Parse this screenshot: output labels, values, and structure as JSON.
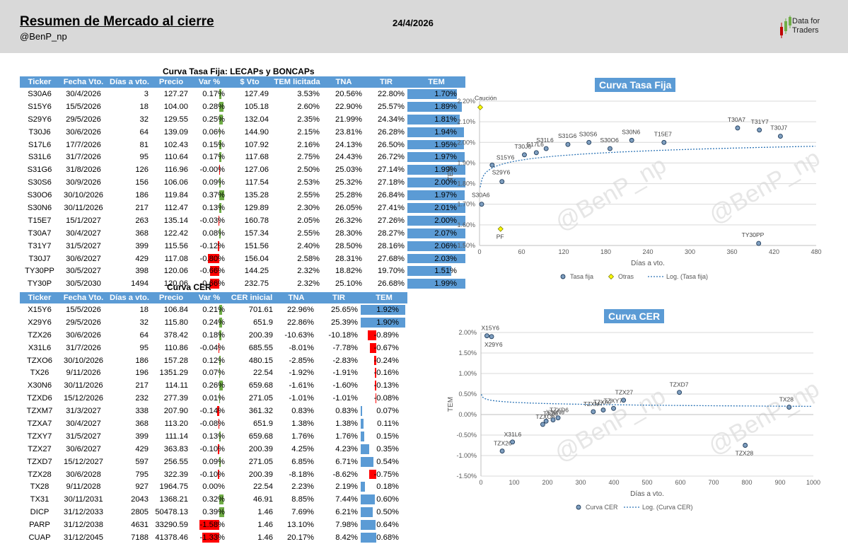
{
  "header": {
    "title": "Resumen de Mercado al cierre",
    "handle": "@BenP_np",
    "date": "24/4/2026",
    "logo_line1": "Data for",
    "logo_line2": "Traders"
  },
  "colors": {
    "header_bg": "#d9d9d9",
    "accent": "#5b9bd5",
    "positive": "#70ad47",
    "negative": "#ff0000"
  },
  "fija_table": {
    "title": "Curva Tasa Fija: LECAPs y BONCAPs",
    "columns": [
      "Ticker",
      "Fecha Vto.",
      "Días a vto.",
      "Precio",
      "Var %",
      "$ Vto",
      "TEM licitada",
      "TNA",
      "TIR",
      "TEM"
    ],
    "rows": [
      [
        "S30A6",
        "30/4/2026",
        "3",
        "127.27",
        "0.17%",
        "127.49",
        "3.53%",
        "20.56%",
        "22.80%",
        "1.70%"
      ],
      [
        "S15Y6",
        "15/5/2026",
        "18",
        "104.00",
        "0.28%",
        "105.18",
        "2.60%",
        "22.90%",
        "25.57%",
        "1.89%"
      ],
      [
        "S29Y6",
        "29/5/2026",
        "32",
        "129.55",
        "0.25%",
        "132.04",
        "2.35%",
        "21.99%",
        "24.34%",
        "1.81%"
      ],
      [
        "T30J6",
        "30/6/2026",
        "64",
        "139.09",
        "0.06%",
        "144.90",
        "2.15%",
        "23.81%",
        "26.28%",
        "1.94%"
      ],
      [
        "S17L6",
        "17/7/2026",
        "81",
        "102.43",
        "0.15%",
        "107.92",
        "2.16%",
        "24.13%",
        "26.50%",
        "1.95%"
      ],
      [
        "S31L6",
        "31/7/2026",
        "95",
        "110.64",
        "0.17%",
        "117.68",
        "2.75%",
        "24.43%",
        "26.72%",
        "1.97%"
      ],
      [
        "S31G6",
        "31/8/2026",
        "126",
        "116.96",
        "-0.00%",
        "127.06",
        "2.50%",
        "25.03%",
        "27.14%",
        "1.99%"
      ],
      [
        "S30S6",
        "30/9/2026",
        "156",
        "106.06",
        "0.09%",
        "117.54",
        "2.53%",
        "25.32%",
        "27.18%",
        "2.00%"
      ],
      [
        "S30O6",
        "30/10/2026",
        "186",
        "119.84",
        "0.37%",
        "135.28",
        "2.55%",
        "25.28%",
        "26.84%",
        "1.97%"
      ],
      [
        "S30N6",
        "30/11/2026",
        "217",
        "112.47",
        "0.13%",
        "129.89",
        "2.30%",
        "26.05%",
        "27.41%",
        "2.01%"
      ],
      [
        "T15E7",
        "15/1/2027",
        "263",
        "135.14",
        "-0.03%",
        "160.78",
        "2.05%",
        "26.32%",
        "27.26%",
        "2.00%"
      ],
      [
        "T30A7",
        "30/4/2027",
        "368",
        "122.42",
        "0.08%",
        "157.34",
        "2.55%",
        "28.30%",
        "28.27%",
        "2.07%"
      ],
      [
        "T31Y7",
        "31/5/2027",
        "399",
        "115.56",
        "-0.12%",
        "151.56",
        "2.40%",
        "28.50%",
        "28.16%",
        "2.06%"
      ],
      [
        "T30J7",
        "30/6/2027",
        "429",
        "117.08",
        "-0.80%",
        "156.04",
        "2.58%",
        "28.31%",
        "27.68%",
        "2.03%"
      ],
      [
        "TY30PP",
        "30/5/2027",
        "398",
        "120.06",
        "-0.66%",
        "144.25",
        "2.32%",
        "18.82%",
        "19.70%",
        "1.51%"
      ],
      [
        "TY30P",
        "30/5/2030",
        "1494",
        "120.06",
        "-0.66%",
        "232.75",
        "2.32%",
        "25.10%",
        "26.68%",
        "1.99%"
      ]
    ],
    "var_values": [
      0.17,
      0.28,
      0.25,
      0.06,
      0.15,
      0.17,
      -0.005,
      0.09,
      0.37,
      0.13,
      -0.03,
      0.08,
      -0.12,
      -0.8,
      -0.66,
      -0.66
    ],
    "tem_values": [
      1.7,
      1.89,
      1.81,
      1.94,
      1.95,
      1.97,
      1.99,
      2.0,
      1.97,
      2.01,
      2.0,
      2.07,
      2.06,
      2.03,
      1.51,
      1.99
    ]
  },
  "cer_table": {
    "title": "Curva CER",
    "columns": [
      "Ticker",
      "Fecha Vto.",
      "Días a vto.",
      "Precio",
      "Var %",
      "CER inicial",
      "TNA",
      "TIR",
      "TEM"
    ],
    "rows": [
      [
        "X15Y6",
        "15/5/2026",
        "18",
        "106.84",
        "0.21%",
        "701.61",
        "22.96%",
        "25.65%",
        "1.92%"
      ],
      [
        "X29Y6",
        "29/5/2026",
        "32",
        "115.80",
        "0.24%",
        "651.9",
        "22.86%",
        "25.39%",
        "1.90%"
      ],
      [
        "TZX26",
        "30/6/2026",
        "64",
        "378.42",
        "0.18%",
        "200.39",
        "-10.63%",
        "-10.18%",
        "-0.89%"
      ],
      [
        "X31L6",
        "31/7/2026",
        "95",
        "110.86",
        "-0.04%",
        "685.55",
        "-8.01%",
        "-7.78%",
        "-0.67%"
      ],
      [
        "TZXO6",
        "30/10/2026",
        "186",
        "157.28",
        "0.12%",
        "480.15",
        "-2.85%",
        "-2.83%",
        "-0.24%"
      ],
      [
        "TX26",
        "9/11/2026",
        "196",
        "1351.29",
        "0.07%",
        "22.54",
        "-1.92%",
        "-1.91%",
        "-0.16%"
      ],
      [
        "X30N6",
        "30/11/2026",
        "217",
        "114.11",
        "0.26%",
        "659.68",
        "-1.61%",
        "-1.60%",
        "-0.13%"
      ],
      [
        "TZXD6",
        "15/12/2026",
        "232",
        "277.39",
        "0.01%",
        "271.05",
        "-1.01%",
        "-1.01%",
        "-0.08%"
      ],
      [
        "TZXM7",
        "31/3/2027",
        "338",
        "207.90",
        "-0.14%",
        "361.32",
        "0.83%",
        "0.83%",
        "0.07%"
      ],
      [
        "TZXA7",
        "30/4/2027",
        "368",
        "113.20",
        "-0.08%",
        "651.9",
        "1.38%",
        "1.38%",
        "0.11%"
      ],
      [
        "TZXY7",
        "31/5/2027",
        "399",
        "111.14",
        "0.13%",
        "659.68",
        "1.76%",
        "1.76%",
        "0.15%"
      ],
      [
        "TZX27",
        "30/6/2027",
        "429",
        "363.83",
        "-0.10%",
        "200.39",
        "4.25%",
        "4.23%",
        "0.35%"
      ],
      [
        "TZXD7",
        "15/12/2027",
        "597",
        "256.55",
        "0.09%",
        "271.05",
        "6.85%",
        "6.71%",
        "0.54%"
      ],
      [
        "TZX28",
        "30/6/2028",
        "795",
        "322.39",
        "-0.10%",
        "200.39",
        "-8.18%",
        "-8.62%",
        "-0.75%"
      ],
      [
        "TX28",
        "9/11/2028",
        "927",
        "1964.75",
        "0.00%",
        "22.54",
        "2.23%",
        "2.19%",
        "0.18%"
      ],
      [
        "TX31",
        "30/11/2031",
        "2043",
        "1368.21",
        "0.32%",
        "46.91",
        "8.85%",
        "7.44%",
        "0.60%"
      ],
      [
        "DICP",
        "31/12/2033",
        "2805",
        "50478.13",
        "0.39%",
        "1.46",
        "7.69%",
        "6.21%",
        "0.50%"
      ],
      [
        "PARP",
        "31/12/2038",
        "4631",
        "33290.59",
        "-1.58%",
        "1.46",
        "13.10%",
        "7.98%",
        "0.64%"
      ],
      [
        "CUAP",
        "31/12/2045",
        "7188",
        "41378.46",
        "-1.33%",
        "1.46",
        "20.17%",
        "8.42%",
        "0.68%"
      ]
    ],
    "var_values": [
      0.21,
      0.24,
      0.18,
      -0.04,
      0.12,
      0.07,
      0.26,
      0.01,
      -0.14,
      -0.08,
      0.13,
      -0.1,
      0.09,
      -0.1,
      0.0,
      0.32,
      0.39,
      -1.58,
      -1.33
    ],
    "tem_values": [
      1.92,
      1.9,
      -0.89,
      -0.67,
      -0.24,
      -0.16,
      -0.13,
      -0.08,
      0.07,
      0.11,
      0.15,
      0.35,
      0.54,
      -0.75,
      0.18,
      0.6,
      0.5,
      0.64,
      0.68
    ]
  },
  "chart_data": [
    {
      "type": "scatter",
      "title": "Curva Tasa Fija",
      "xlabel": "Días a vto.",
      "ylabel": "TEM",
      "xlim": [
        0,
        480
      ],
      "ylim": [
        1.5,
        2.2
      ],
      "xticks": [
        "0",
        "60",
        "120",
        "180",
        "240",
        "300",
        "360",
        "420",
        "480"
      ],
      "yticks": [
        "1.50%",
        "1.60%",
        "1.70%",
        "1.80%",
        "1.90%",
        "2.00%",
        "2.10%",
        "2.20%"
      ],
      "legend": [
        "Tasa fija",
        "Otras",
        "Log. (Tasa fija)"
      ],
      "watermark": "@BenP_np",
      "series": [
        {
          "name": "Tasa fija",
          "points": [
            {
              "label": "S30A6",
              "x": 3,
              "y": 1.7
            },
            {
              "label": "S15Y6",
              "x": 18,
              "y": 1.89
            },
            {
              "label": "S29Y6",
              "x": 32,
              "y": 1.81
            },
            {
              "label": "T30J6",
              "x": 64,
              "y": 1.94
            },
            {
              "label": "S17L6",
              "x": 81,
              "y": 1.95
            },
            {
              "label": "S31L6",
              "x": 95,
              "y": 1.97
            },
            {
              "label": "S31G6",
              "x": 126,
              "y": 1.99
            },
            {
              "label": "S30S6",
              "x": 156,
              "y": 2.0
            },
            {
              "label": "S30O6",
              "x": 186,
              "y": 1.97
            },
            {
              "label": "S30N6",
              "x": 217,
              "y": 2.01
            },
            {
              "label": "T15E7",
              "x": 263,
              "y": 2.0
            },
            {
              "label": "T30A7",
              "x": 368,
              "y": 2.07
            },
            {
              "label": "T31Y7",
              "x": 399,
              "y": 2.06
            },
            {
              "label": "T30J7",
              "x": 429,
              "y": 2.03
            },
            {
              "label": "TY30PP",
              "x": 398,
              "y": 1.51
            }
          ]
        },
        {
          "name": "Otras",
          "points": [
            {
              "label": "Caución",
              "x": 1,
              "y": 2.17
            },
            {
              "label": "PF",
              "x": 30,
              "y": 1.58
            }
          ]
        }
      ],
      "trend": {
        "type": "log",
        "a": 1.7826,
        "b": 0.0322
      }
    },
    {
      "type": "scatter",
      "title": "Curva CER",
      "xlabel": "Días a vto.",
      "ylabel": "TEM",
      "xlim": [
        0,
        1000
      ],
      "ylim": [
        -1.5,
        2.0
      ],
      "xticks": [
        "0",
        "100",
        "200",
        "300",
        "400",
        "500",
        "600",
        "700",
        "800",
        "900",
        "1000"
      ],
      "yticks": [
        "-1.50%",
        "-1.00%",
        "-0.50%",
        "0.00%",
        "0.50%",
        "1.00%",
        "1.50%",
        "2.00%"
      ],
      "legend": [
        "Curva CER",
        "Log. (Curva CER)"
      ],
      "watermark": "@BenP_np",
      "series": [
        {
          "name": "Curva CER",
          "points": [
            {
              "label": "X15Y6",
              "x": 18,
              "y": 1.92
            },
            {
              "label": "X29Y6",
              "x": 32,
              "y": 1.9
            },
            {
              "label": "TZX26",
              "x": 64,
              "y": -0.89
            },
            {
              "label": "X31L6",
              "x": 95,
              "y": -0.67
            },
            {
              "label": "TZXO6",
              "x": 186,
              "y": -0.24
            },
            {
              "label": "TX26",
              "x": 196,
              "y": -0.16
            },
            {
              "label": "X30N6",
              "x": 217,
              "y": -0.13
            },
            {
              "label": "TZXD6",
              "x": 232,
              "y": -0.08
            },
            {
              "label": "TZXM7",
              "x": 338,
              "y": 0.07
            },
            {
              "label": "TZXA7",
              "x": 368,
              "y": 0.11
            },
            {
              "label": "TZXY7",
              "x": 399,
              "y": 0.15
            },
            {
              "label": "TZX27",
              "x": 429,
              "y": 0.35
            },
            {
              "label": "TZXD7",
              "x": 597,
              "y": 0.54
            },
            {
              "label": "TZX28",
              "x": 795,
              "y": -0.75
            },
            {
              "label": "TX28",
              "x": 927,
              "y": 0.18
            }
          ]
        }
      ],
      "trend": {
        "type": "log",
        "a": 0.493,
        "b": -0.0425
      }
    }
  ]
}
